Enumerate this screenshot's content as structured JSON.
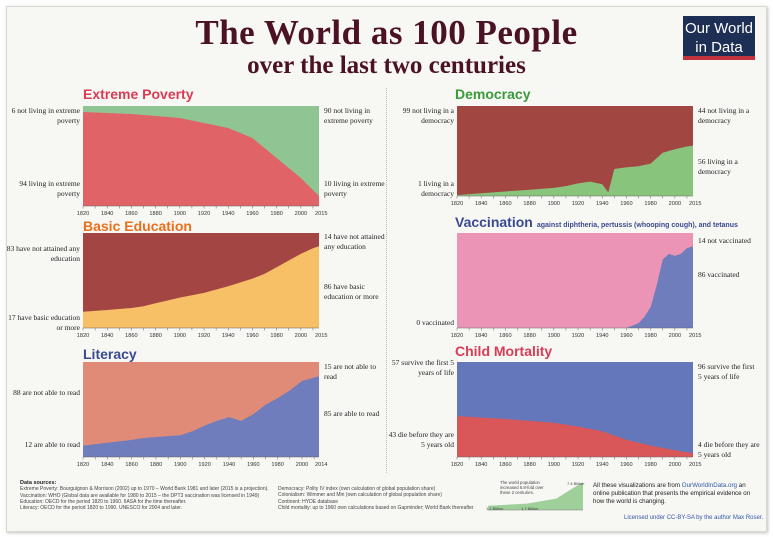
{
  "title": "The World as 100 People",
  "subtitle": "over the last two centuries",
  "logo": {
    "line1": "Our World",
    "line2": "in Data"
  },
  "colors": {
    "title": "#4a1224",
    "logo_bg": "#1e2f55",
    "logo_accent": "#c1333c"
  },
  "chart_data": [
    {
      "type": "area",
      "title": "Extreme Poverty",
      "title_color": "#d93c55",
      "x": [
        1820,
        1840,
        1860,
        1880,
        1900,
        1920,
        1940,
        1960,
        1970,
        1980,
        1990,
        2000,
        2010,
        2015
      ],
      "values": [
        94,
        93,
        92,
        90,
        88,
        83,
        78,
        68,
        58,
        48,
        38,
        28,
        16,
        10
      ],
      "series_names": [
        "not living in extreme poverty",
        "living in extreme poverty"
      ],
      "xticks": [
        "1820",
        "1840",
        "1860",
        "1880",
        "1900",
        "1920",
        "1940",
        "1960",
        "1980",
        "2000",
        "2015"
      ],
      "ylim": [
        0,
        100
      ],
      "labels": {
        "top_left": "6 not living in extreme poverty",
        "bottom_left": "94 living in extreme poverty",
        "top_right": "90 not living in extreme poverty",
        "bottom_right": "10 living in extreme poverty"
      }
    },
    {
      "type": "area",
      "title": "Basic Education",
      "title_color": "#ea6f1c",
      "x": [
        1820,
        1840,
        1860,
        1870,
        1880,
        1900,
        1920,
        1940,
        1960,
        1970,
        1980,
        1990,
        2000,
        2010,
        2015
      ],
      "values": [
        17,
        19,
        21,
        23,
        26,
        32,
        37,
        44,
        52,
        57,
        64,
        71,
        78,
        84,
        86
      ],
      "series_names": [
        "have not attained any education",
        "have basic education or more"
      ],
      "xticks": [
        "1820",
        "1840",
        "1860",
        "1880",
        "1900",
        "1920",
        "1940",
        "1960",
        "1980",
        "2000",
        "2015"
      ],
      "ylim": [
        0,
        100
      ],
      "labels": {
        "top_left": "83 have not attained any education",
        "bottom_left": "17 have basic education or more",
        "top_right": "14 have not attained any education",
        "bottom_right": "86 have basic education or more"
      }
    },
    {
      "type": "area",
      "title": "Literacy",
      "title_color": "#3a4a8f",
      "x": [
        1820,
        1840,
        1860,
        1870,
        1880,
        1900,
        1910,
        1920,
        1930,
        1940,
        1950,
        1960,
        1970,
        1980,
        1990,
        2000,
        2014
      ],
      "values": [
        12,
        15,
        18,
        20,
        21,
        23,
        27,
        33,
        38,
        42,
        38,
        45,
        55,
        62,
        70,
        80,
        85
      ],
      "series_names": [
        "are not able to read",
        "are able to read"
      ],
      "xticks": [
        "1820",
        "1840",
        "1860",
        "1880",
        "1900",
        "1920",
        "1940",
        "1960",
        "1980",
        "2000",
        "2014"
      ],
      "ylim": [
        0,
        100
      ],
      "labels": {
        "top_left": "88 are not able to read",
        "bottom_left": "12 are able to read",
        "top_right": "15 are not able to read",
        "bottom_right": "85 are able to read"
      }
    },
    {
      "type": "area",
      "title": "Democracy",
      "title_color": "#3a9a3a",
      "x": [
        1820,
        1840,
        1860,
        1880,
        1900,
        1910,
        1920,
        1930,
        1940,
        1945,
        1950,
        1960,
        1970,
        1980,
        1990,
        2000,
        2010,
        2015
      ],
      "values": [
        1,
        3,
        5,
        7,
        9,
        11,
        14,
        16,
        13,
        4,
        30,
        32,
        33,
        36,
        48,
        52,
        55,
        56
      ],
      "series_names": [
        "not living in a democracy",
        "living in a democracy"
      ],
      "xticks": [
        "1820",
        "1840",
        "1860",
        "1880",
        "1900",
        "1920",
        "1940",
        "1960",
        "1980",
        "2000",
        "2015"
      ],
      "ylim": [
        0,
        100
      ],
      "labels": {
        "top_left": "99 not living in a democracy",
        "bottom_left": "1 living in a democracy",
        "top_right": "44 not living in a democracy",
        "bottom_right": "56 living in a democracy"
      }
    },
    {
      "type": "area",
      "title": "Vaccination",
      "title_color": "#3a4a8f",
      "subtitle": "against diphtheria, pertussis (whooping cough), and tetanus",
      "x": [
        1820,
        1940,
        1960,
        1970,
        1975,
        1980,
        1985,
        1990,
        1995,
        2000,
        2005,
        2010,
        2015
      ],
      "values": [
        0,
        0,
        0,
        5,
        12,
        22,
        45,
        72,
        78,
        76,
        78,
        84,
        86
      ],
      "series_names": [
        "not vaccinated",
        "vaccinated"
      ],
      "xticks": [
        "1820",
        "1840",
        "1860",
        "1880",
        "1900",
        "1920",
        "1940",
        "1960",
        "1980",
        "2000",
        "2015"
      ],
      "ylim": [
        0,
        100
      ],
      "labels": {
        "top_right": "14 not vaccinated",
        "bottom_left": "0 vaccinated",
        "bottom_right": "86 vaccinated"
      }
    },
    {
      "type": "area",
      "title": "Child Mortality",
      "title_color": "#d93c55",
      "x": [
        1820,
        1860,
        1900,
        1920,
        1940,
        1960,
        1980,
        2000,
        2015
      ],
      "values": [
        43,
        40,
        36,
        32,
        27,
        18,
        12,
        7,
        4
      ],
      "series_names": [
        "survive the first 5 years of life",
        "die before they are 5 years old"
      ],
      "xticks": [
        "1820",
        "1840",
        "1860",
        "1880",
        "1900",
        "1920",
        "1940",
        "1960",
        "1980",
        "2000",
        "2015"
      ],
      "ylim": [
        0,
        100
      ],
      "labels": {
        "top_left": "57 survive the first 5 years of life",
        "bottom_left": "43 die before they are 5 years old",
        "top_right": "96 survive the first 5 years of life",
        "bottom_right": "4 die before they are 5 years old"
      }
    }
  ],
  "sources": {
    "heading": "Data sources:",
    "left": [
      "Extreme Poverty: Bourguignon & Morrison (2002) up to 1970 – World Bank 1981 and later (2015 is a projection).",
      "Vaccination: WHO (Global data are available for 1980 to 2015 – the DPT3 vaccination was licensed in 1949)",
      "Education: OECD for the period 1820 to 1960. IIASA for the time thereafter.",
      "Literacy: OECD for the period 1820 to 1990. UNESCO for 2004 and later."
    ],
    "right": [
      "Democracy: Polity IV index (own calculation of global population share)",
      "Colonialism: Wimmer and Min (own calculation of global population share)",
      "Continent: HYDE database",
      "Child mortality: up to 1960 own calculations based on Gapminder; World Bank thereafter"
    ]
  },
  "population": {
    "note": "The world population increased 6.8-fold over these 2 centuries.",
    "labels": [
      "1.1 Billion",
      "1.7 Billion",
      "7.4 Billion"
    ],
    "x": [
      1820,
      1900,
      1960,
      2015
    ],
    "values": [
      1.1,
      1.7,
      3.0,
      7.4
    ]
  },
  "footer": {
    "note_prefix": "All these visualizations are from",
    "link": "OurWorldInData.org",
    "note_suffix": "an online publication that presents the empirical evidence on how the world is changing.",
    "license": "Licensed under CC-BY-SA by the author Max Roser."
  }
}
